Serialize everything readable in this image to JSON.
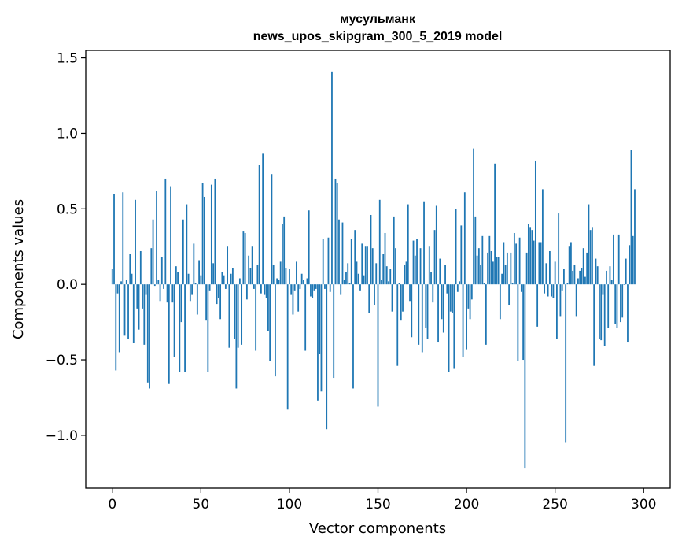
{
  "chart_data": {
    "type": "bar",
    "title": "мусульманк",
    "subtitle": "news_upos_skipgram_300_5_2019 model",
    "xlabel": "Vector components",
    "ylabel": "Components values",
    "xlim": [
      -15,
      315
    ],
    "ylim": [
      -1.35,
      1.55
    ],
    "xticks": [
      0,
      50,
      100,
      150,
      200,
      250,
      300
    ],
    "yticks": [
      -1.0,
      -0.5,
      0.0,
      0.5,
      1.0,
      1.5
    ],
    "xtick_labels": [
      "0",
      "50",
      "100",
      "150",
      "200",
      "250",
      "300"
    ],
    "ytick_labels": [
      "−1.0",
      "−0.5",
      "0.0",
      "0.5",
      "1.0",
      "1.5"
    ],
    "bar_color": "#1f77b4",
    "grid": false,
    "values": [
      0.1,
      0.6,
      -0.57,
      -0.06,
      -0.45,
      0.02,
      0.61,
      -0.34,
      0.03,
      -0.36,
      0.2,
      0.07,
      -0.39,
      0.56,
      -0.16,
      -0.3,
      0.22,
      -0.16,
      -0.4,
      -0.07,
      -0.65,
      -0.69,
      0.24,
      0.43,
      -0.01,
      0.62,
      0.03,
      -0.11,
      0.18,
      -0.03,
      0.7,
      -0.12,
      -0.66,
      0.65,
      -0.12,
      -0.48,
      0.12,
      0.08,
      -0.58,
      -0.25,
      0.43,
      -0.58,
      0.53,
      0.07,
      -0.11,
      -0.07,
      0.27,
      0.01,
      -0.2,
      0.16,
      0.06,
      0.67,
      0.58,
      -0.24,
      -0.58,
      -0.04,
      0.66,
      0.14,
      0.7,
      -0.13,
      -0.09,
      -0.23,
      0.08,
      0.06,
      -0.03,
      0.25,
      -0.42,
      0.07,
      0.11,
      -0.36,
      -0.69,
      -0.42,
      0.04,
      -0.4,
      0.35,
      0.34,
      -0.1,
      0.19,
      0.11,
      0.25,
      -0.03,
      -0.44,
      0.13,
      0.79,
      -0.06,
      0.87,
      -0.07,
      -0.09,
      -0.31,
      -0.51,
      0.73,
      0.13,
      -0.61,
      0.04,
      0.03,
      0.15,
      0.4,
      0.45,
      0.11,
      -0.83,
      0.1,
      -0.07,
      -0.2,
      -0.04,
      0.15,
      -0.18,
      -0.03,
      0.07,
      0.03,
      -0.44,
      0.04,
      0.49,
      -0.08,
      -0.09,
      -0.04,
      -0.03,
      -0.77,
      -0.46,
      -0.71,
      0.3,
      -0.03,
      -0.96,
      0.31,
      -0.05,
      1.41,
      -0.62,
      0.7,
      0.67,
      0.43,
      -0.07,
      0.41,
      0.03,
      0.08,
      0.14,
      0.01,
      0.3,
      -0.69,
      0.36,
      0.15,
      0.07,
      -0.04,
      0.27,
      0.06,
      0.25,
      0.25,
      -0.19,
      0.46,
      0.24,
      -0.14,
      0.14,
      -0.81,
      0.56,
      0.03,
      0.2,
      0.34,
      0.12,
      0.02,
      0.1,
      -0.18,
      0.45,
      0.24,
      -0.54,
      0.01,
      -0.24,
      -0.18,
      0.13,
      0.15,
      0.53,
      -0.11,
      -0.35,
      0.29,
      0.19,
      0.3,
      -0.4,
      0.24,
      -0.45,
      0.55,
      -0.29,
      -0.36,
      0.25,
      0.08,
      -0.12,
      0.36,
      0.52,
      -0.38,
      0.17,
      -0.23,
      -0.32,
      0.13,
      -0.06,
      -0.58,
      -0.18,
      -0.19,
      -0.56,
      0.5,
      -0.05,
      0.02,
      0.39,
      -0.48,
      0.61,
      -0.43,
      -0.16,
      -0.23,
      -0.1,
      0.9,
      0.45,
      0.19,
      0.24,
      0.13,
      0.32,
      0.01,
      -0.4,
      0.21,
      0.32,
      0.22,
      0.15,
      0.8,
      0.18,
      0.18,
      -0.23,
      0.07,
      0.28,
      0.13,
      0.21,
      -0.14,
      0.21,
      0.01,
      0.34,
      0.27,
      -0.51,
      0.31,
      -0.05,
      -0.5,
      -1.22,
      0.21,
      0.4,
      0.38,
      0.36,
      0.29,
      0.82,
      -0.28,
      0.28,
      0.28,
      0.63,
      -0.06,
      0.14,
      -0.08,
      0.22,
      -0.08,
      -0.09,
      0.15,
      -0.36,
      0.47,
      -0.21,
      -0.04,
      0.1,
      -1.05,
      0.01,
      0.25,
      0.28,
      0.09,
      0.13,
      -0.21,
      0.04,
      0.09,
      0.11,
      0.24,
      0.05,
      0.21,
      0.53,
      0.36,
      0.38,
      -0.54,
      0.17,
      0.12,
      -0.36,
      -0.37,
      -0.07,
      -0.41,
      0.09,
      -0.29,
      0.12,
      0.03,
      0.33,
      -0.26,
      -0.29,
      0.33,
      -0.25,
      -0.22,
      0.0,
      0.17,
      -0.38,
      0.26,
      0.89,
      0.32,
      0.63
    ]
  }
}
